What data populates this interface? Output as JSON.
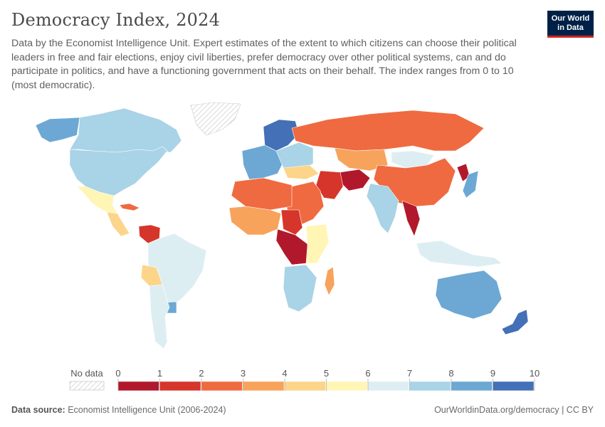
{
  "header": {
    "title": "Democracy Index, 2024",
    "subtitle": "Data by the Economist Intelligence Unit. Expert estimates of the extent to which citizens can choose their political leaders in free and fair elections, enjoy civil liberties, prefer democracy over other political systems, can and do participate in politics, and have a functioning government that acts on their behalf. The index ranges from 0 to 10 (most democratic).",
    "logo_line1": "Our World",
    "logo_line2": "in Data"
  },
  "legend": {
    "no_data_label": "No data",
    "ticks": [
      "0",
      "1",
      "2",
      "3",
      "4",
      "5",
      "6",
      "7",
      "8",
      "9",
      "10"
    ],
    "bins": [
      {
        "range": "0-1",
        "color": "#b2182b"
      },
      {
        "range": "1-2",
        "color": "#d6352b"
      },
      {
        "range": "2-3",
        "color": "#ef6a40"
      },
      {
        "range": "3-4",
        "color": "#f7a35c"
      },
      {
        "range": "4-5",
        "color": "#fcd58a"
      },
      {
        "range": "5-6",
        "color": "#fff5b5"
      },
      {
        "range": "6-7",
        "color": "#ddeef3"
      },
      {
        "range": "7-8",
        "color": "#a9d3e6"
      },
      {
        "range": "8-9",
        "color": "#6ca8d3"
      },
      {
        "range": "9-10",
        "color": "#4370b6"
      }
    ]
  },
  "regions": [
    {
      "name": "North America (Canada)",
      "color": "#6ca8d3"
    },
    {
      "name": "United States",
      "color": "#a9d3e6"
    },
    {
      "name": "Alaska",
      "color": "#a9d3e6"
    },
    {
      "name": "Greenland",
      "color": "no-data"
    },
    {
      "name": "Mexico",
      "color": "#fff5b5"
    },
    {
      "name": "Central America",
      "color": "#fcd58a"
    },
    {
      "name": "Cuba",
      "color": "#ef6a40"
    },
    {
      "name": "Venezuela",
      "color": "#d6352b"
    },
    {
      "name": "Brazil",
      "color": "#ddeef3"
    },
    {
      "name": "Bolivia",
      "color": "#fcd58a"
    },
    {
      "name": "Uruguay",
      "color": "#6ca8d3"
    },
    {
      "name": "Argentina",
      "color": "#ddeef3"
    },
    {
      "name": "Scandinavia",
      "color": "#4370b6"
    },
    {
      "name": "Western Europe",
      "color": "#6ca8d3"
    },
    {
      "name": "Eastern Europe",
      "color": "#a9d3e6"
    },
    {
      "name": "Russia",
      "color": "#ef6a40"
    },
    {
      "name": "Kazakhstan",
      "color": "#f7a35c"
    },
    {
      "name": "Mongolia",
      "color": "#ddeef3"
    },
    {
      "name": "China",
      "color": "#ef6a40"
    },
    {
      "name": "North Korea",
      "color": "#b2182b"
    },
    {
      "name": "Japan",
      "color": "#6ca8d3"
    },
    {
      "name": "India",
      "color": "#a9d3e6"
    },
    {
      "name": "Myanmar",
      "color": "#b2182b"
    },
    {
      "name": "Afghanistan",
      "color": "#b2182b"
    },
    {
      "name": "Iran",
      "color": "#d6352b"
    },
    {
      "name": "Middle East",
      "color": "#ef6a40"
    },
    {
      "name": "Turkey",
      "color": "#fcd58a"
    },
    {
      "name": "Northern Africa",
      "color": "#ef6a40"
    },
    {
      "name": "Sahel",
      "color": "#f7a35c"
    },
    {
      "name": "Sudan",
      "color": "#d6352b"
    },
    {
      "name": "Central Africa",
      "color": "#b2182b"
    },
    {
      "name": "East Africa",
      "color": "#fff5b5"
    },
    {
      "name": "Southern Africa",
      "color": "#a9d3e6"
    },
    {
      "name": "Madagascar",
      "color": "#f7a35c"
    },
    {
      "name": "Indonesia",
      "color": "#ddeef3"
    },
    {
      "name": "Australia",
      "color": "#6ca8d3"
    },
    {
      "name": "New Zealand",
      "color": "#4370b6"
    }
  ],
  "footer": {
    "source_label": "Data source:",
    "source_value": "Economist Intelligence Unit (2006-2024)",
    "url": "OurWorldinData.org/democracy | CC BY"
  }
}
